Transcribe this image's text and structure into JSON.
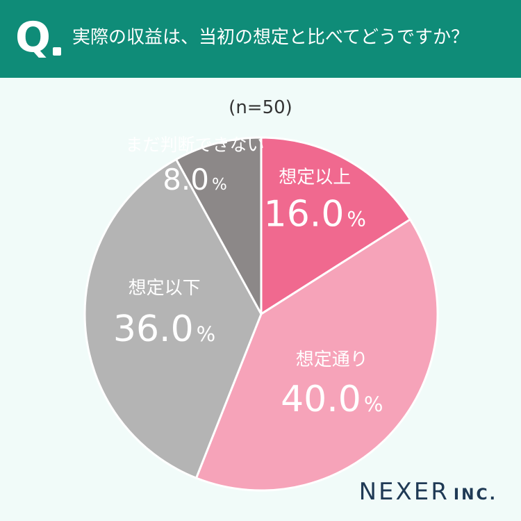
{
  "header": {
    "q_mark": "Q",
    "question": "実際の収益は、当初の想定と比べてどうですか？"
  },
  "sample_size": "(n=50)",
  "chart_data": {
    "type": "pie",
    "title": "実際の収益は、当初の想定と比べてどうですか？",
    "categories": [
      "想定以上",
      "想定通り",
      "想定以下",
      "まだ判断できない"
    ],
    "values": [
      16.0,
      40.0,
      36.0,
      8.0
    ],
    "value_labels": [
      "16.0",
      "40.0",
      "36.0",
      "8.0"
    ],
    "unit": "%",
    "colors": [
      "#f0698f",
      "#f6a3b9",
      "#b4b4b4",
      "#8c8888"
    ],
    "start_angle_deg": 0,
    "direction": "clockwise"
  },
  "logo": {
    "main": "NEXER",
    "suffix": "INC."
  }
}
